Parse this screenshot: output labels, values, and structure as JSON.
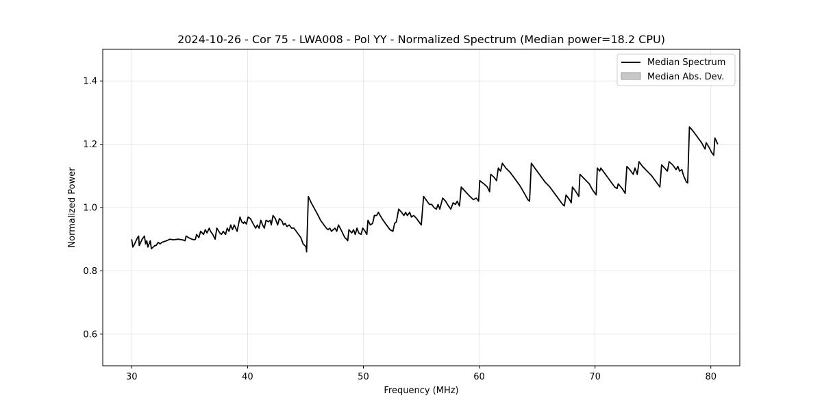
{
  "chart_data": {
    "type": "line",
    "title": "2024-10-26 - Cor 75 - LWA008 - Pol YY - Normalized Spectrum (Median power=18.2 CPU)",
    "xlabel": "Frequency (MHz)",
    "ylabel": "Normalized Power",
    "xlim": [
      27.5,
      82.5
    ],
    "ylim": [
      0.5,
      1.5
    ],
    "xticks": [
      30,
      40,
      50,
      60,
      70,
      80
    ],
    "yticks": [
      0.6,
      0.8,
      1.0,
      1.2,
      1.4
    ],
    "xtick_labels": [
      "30",
      "40",
      "50",
      "60",
      "70",
      "80"
    ],
    "ytick_labels": [
      "0.6",
      "0.8",
      "1.0",
      "1.2",
      "1.4"
    ],
    "grid": true,
    "legend": {
      "placement": "top-right",
      "entries": [
        {
          "label": "Median Spectrum",
          "kind": "line",
          "color": "#000000"
        },
        {
          "label": "Median Abs. Dev.",
          "kind": "patch",
          "color": "#c8c8c8"
        }
      ]
    },
    "series": [
      {
        "name": "Median Spectrum",
        "color": "#000000",
        "points": [
          [
            30.0,
            0.9
          ],
          [
            30.1,
            0.875
          ],
          [
            30.25,
            0.885
          ],
          [
            30.5,
            0.905
          ],
          [
            30.6,
            0.91
          ],
          [
            30.65,
            0.88
          ],
          [
            30.9,
            0.9
          ],
          [
            31.1,
            0.91
          ],
          [
            31.2,
            0.885
          ],
          [
            31.3,
            0.895
          ],
          [
            31.4,
            0.875
          ],
          [
            31.6,
            0.895
          ],
          [
            31.7,
            0.87
          ],
          [
            31.85,
            0.875
          ],
          [
            32.0,
            0.88
          ],
          [
            32.1,
            0.88
          ],
          [
            32.3,
            0.89
          ],
          [
            32.45,
            0.885
          ],
          [
            32.6,
            0.89
          ],
          [
            33.0,
            0.895
          ],
          [
            33.3,
            0.9
          ],
          [
            33.6,
            0.898
          ],
          [
            34.0,
            0.9
          ],
          [
            34.4,
            0.898
          ],
          [
            34.6,
            0.895
          ],
          [
            34.7,
            0.91
          ],
          [
            34.9,
            0.905
          ],
          [
            35.2,
            0.9
          ],
          [
            35.4,
            0.898
          ],
          [
            35.5,
            0.9
          ],
          [
            35.6,
            0.915
          ],
          [
            35.8,
            0.905
          ],
          [
            35.95,
            0.925
          ],
          [
            36.2,
            0.915
          ],
          [
            36.35,
            0.93
          ],
          [
            36.5,
            0.92
          ],
          [
            36.7,
            0.935
          ],
          [
            36.8,
            0.925
          ],
          [
            37.0,
            0.915
          ],
          [
            37.2,
            0.9
          ],
          [
            37.35,
            0.935
          ],
          [
            37.6,
            0.92
          ],
          [
            37.75,
            0.915
          ],
          [
            37.9,
            0.925
          ],
          [
            38.1,
            0.915
          ],
          [
            38.25,
            0.935
          ],
          [
            38.4,
            0.925
          ],
          [
            38.55,
            0.945
          ],
          [
            38.7,
            0.93
          ],
          [
            38.85,
            0.945
          ],
          [
            39.1,
            0.925
          ],
          [
            39.35,
            0.97
          ],
          [
            39.5,
            0.955
          ],
          [
            39.65,
            0.95
          ],
          [
            39.75,
            0.955
          ],
          [
            39.9,
            0.948
          ],
          [
            40.05,
            0.97
          ],
          [
            40.25,
            0.965
          ],
          [
            40.5,
            0.948
          ],
          [
            40.7,
            0.935
          ],
          [
            40.85,
            0.945
          ],
          [
            41.0,
            0.935
          ],
          [
            41.15,
            0.96
          ],
          [
            41.3,
            0.945
          ],
          [
            41.45,
            0.935
          ],
          [
            41.6,
            0.96
          ],
          [
            41.8,
            0.955
          ],
          [
            41.95,
            0.96
          ],
          [
            42.05,
            0.945
          ],
          [
            42.2,
            0.975
          ],
          [
            42.4,
            0.965
          ],
          [
            42.6,
            0.945
          ],
          [
            42.75,
            0.965
          ],
          [
            42.9,
            0.96
          ],
          [
            43.0,
            0.955
          ],
          [
            43.1,
            0.945
          ],
          [
            43.25,
            0.95
          ],
          [
            43.4,
            0.94
          ],
          [
            43.6,
            0.945
          ],
          [
            43.8,
            0.935
          ],
          [
            44.0,
            0.935
          ],
          [
            44.2,
            0.925
          ],
          [
            44.4,
            0.915
          ],
          [
            44.6,
            0.905
          ],
          [
            44.8,
            0.885
          ],
          [
            44.95,
            0.88
          ],
          [
            45.05,
            0.875
          ],
          [
            45.1,
            0.86
          ],
          [
            45.25,
            1.035
          ],
          [
            45.5,
            1.015
          ],
          [
            45.8,
            0.995
          ],
          [
            46.1,
            0.975
          ],
          [
            46.3,
            0.96
          ],
          [
            46.6,
            0.945
          ],
          [
            46.8,
            0.935
          ],
          [
            46.95,
            0.93
          ],
          [
            47.1,
            0.935
          ],
          [
            47.25,
            0.925
          ],
          [
            47.4,
            0.93
          ],
          [
            47.55,
            0.935
          ],
          [
            47.7,
            0.925
          ],
          [
            47.85,
            0.945
          ],
          [
            48.0,
            0.935
          ],
          [
            48.2,
            0.92
          ],
          [
            48.4,
            0.905
          ],
          [
            48.55,
            0.9
          ],
          [
            48.65,
            0.895
          ],
          [
            48.75,
            0.93
          ],
          [
            49.0,
            0.92
          ],
          [
            49.15,
            0.93
          ],
          [
            49.3,
            0.915
          ],
          [
            49.45,
            0.935
          ],
          [
            49.6,
            0.92
          ],
          [
            49.8,
            0.915
          ],
          [
            49.95,
            0.935
          ],
          [
            50.15,
            0.925
          ],
          [
            50.3,
            0.915
          ],
          [
            50.4,
            0.96
          ],
          [
            50.6,
            0.945
          ],
          [
            50.8,
            0.95
          ],
          [
            50.95,
            0.975
          ],
          [
            51.15,
            0.975
          ],
          [
            51.3,
            0.985
          ],
          [
            51.45,
            0.975
          ],
          [
            51.7,
            0.96
          ],
          [
            52.0,
            0.945
          ],
          [
            52.3,
            0.93
          ],
          [
            52.55,
            0.925
          ],
          [
            52.7,
            0.95
          ],
          [
            52.85,
            0.955
          ],
          [
            53.05,
            0.995
          ],
          [
            53.3,
            0.985
          ],
          [
            53.5,
            0.975
          ],
          [
            53.65,
            0.985
          ],
          [
            53.8,
            0.975
          ],
          [
            54.0,
            0.985
          ],
          [
            54.15,
            0.97
          ],
          [
            54.35,
            0.975
          ],
          [
            54.6,
            0.965
          ],
          [
            54.8,
            0.955
          ],
          [
            55.0,
            0.945
          ],
          [
            55.2,
            1.035
          ],
          [
            55.5,
            1.02
          ],
          [
            55.7,
            1.01
          ],
          [
            55.9,
            1.01
          ],
          [
            56.1,
            1.0
          ],
          [
            56.3,
            0.995
          ],
          [
            56.45,
            1.01
          ],
          [
            56.6,
            0.995
          ],
          [
            56.85,
            1.03
          ],
          [
            57.1,
            1.02
          ],
          [
            57.35,
            1.005
          ],
          [
            57.55,
            0.995
          ],
          [
            57.75,
            1.015
          ],
          [
            57.95,
            1.01
          ],
          [
            58.1,
            1.02
          ],
          [
            58.3,
            1.005
          ],
          [
            58.45,
            1.065
          ],
          [
            58.7,
            1.055
          ],
          [
            58.95,
            1.045
          ],
          [
            59.2,
            1.035
          ],
          [
            59.5,
            1.025
          ],
          [
            59.75,
            1.03
          ],
          [
            59.95,
            1.02
          ],
          [
            60.05,
            1.085
          ],
          [
            60.4,
            1.075
          ],
          [
            60.7,
            1.065
          ],
          [
            60.9,
            1.05
          ],
          [
            61.0,
            1.105
          ],
          [
            61.3,
            1.095
          ],
          [
            61.5,
            1.085
          ],
          [
            61.65,
            1.125
          ],
          [
            61.85,
            1.115
          ],
          [
            62.0,
            1.14
          ],
          [
            62.3,
            1.125
          ],
          [
            62.7,
            1.11
          ],
          [
            63.1,
            1.09
          ],
          [
            63.5,
            1.07
          ],
          [
            63.9,
            1.045
          ],
          [
            64.2,
            1.025
          ],
          [
            64.35,
            1.02
          ],
          [
            64.5,
            1.14
          ],
          [
            64.9,
            1.12
          ],
          [
            65.3,
            1.1
          ],
          [
            65.7,
            1.08
          ],
          [
            66.1,
            1.065
          ],
          [
            66.5,
            1.045
          ],
          [
            66.9,
            1.025
          ],
          [
            67.2,
            1.01
          ],
          [
            67.35,
            1.005
          ],
          [
            67.5,
            1.04
          ],
          [
            67.8,
            1.025
          ],
          [
            67.95,
            1.015
          ],
          [
            68.05,
            1.065
          ],
          [
            68.35,
            1.05
          ],
          [
            68.6,
            1.035
          ],
          [
            68.7,
            1.105
          ],
          [
            69.1,
            1.09
          ],
          [
            69.5,
            1.075
          ],
          [
            69.8,
            1.055
          ],
          [
            70.1,
            1.04
          ],
          [
            70.2,
            1.125
          ],
          [
            70.4,
            1.115
          ],
          [
            70.5,
            1.125
          ],
          [
            70.8,
            1.11
          ],
          [
            71.1,
            1.095
          ],
          [
            71.4,
            1.08
          ],
          [
            71.7,
            1.065
          ],
          [
            71.9,
            1.06
          ],
          [
            72.0,
            1.075
          ],
          [
            72.35,
            1.06
          ],
          [
            72.6,
            1.045
          ],
          [
            72.75,
            1.13
          ],
          [
            73.0,
            1.12
          ],
          [
            73.3,
            1.105
          ],
          [
            73.45,
            1.125
          ],
          [
            73.65,
            1.105
          ],
          [
            73.8,
            1.145
          ],
          [
            74.1,
            1.13
          ],
          [
            74.5,
            1.115
          ],
          [
            74.9,
            1.1
          ],
          [
            75.3,
            1.08
          ],
          [
            75.6,
            1.065
          ],
          [
            75.75,
            1.135
          ],
          [
            76.0,
            1.125
          ],
          [
            76.25,
            1.115
          ],
          [
            76.4,
            1.145
          ],
          [
            76.7,
            1.135
          ],
          [
            77.0,
            1.12
          ],
          [
            77.15,
            1.13
          ],
          [
            77.3,
            1.115
          ],
          [
            77.5,
            1.12
          ],
          [
            77.65,
            1.1
          ],
          [
            77.9,
            1.08
          ],
          [
            78.0,
            1.078
          ],
          [
            78.15,
            1.255
          ],
          [
            78.5,
            1.24
          ],
          [
            78.9,
            1.22
          ],
          [
            79.2,
            1.205
          ],
          [
            79.35,
            1.195
          ],
          [
            79.5,
            1.185
          ],
          [
            79.6,
            1.205
          ],
          [
            79.85,
            1.19
          ],
          [
            80.05,
            1.175
          ],
          [
            80.25,
            1.165
          ],
          [
            80.35,
            1.22
          ],
          [
            80.6,
            1.2
          ]
        ]
      }
    ]
  }
}
